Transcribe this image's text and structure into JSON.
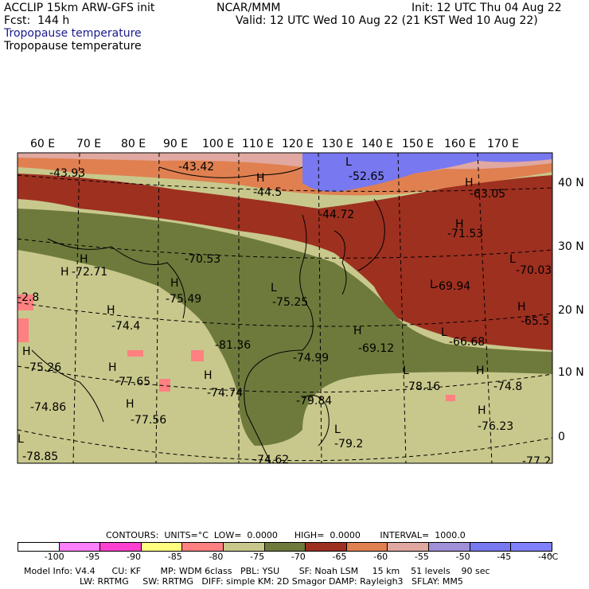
{
  "header": {
    "model": "ACCLIP 15km ARW-GFS init",
    "fcst": "Fcst:  144 h",
    "center": "NCAR/MMM",
    "init": "Init: 12 UTC Thu 04 Aug 22",
    "valid": "Valid: 12 UTC Wed 10 Aug 22 (21 KST Wed 10 Aug 22)",
    "field_title_1": "Tropopause temperature",
    "field_title_2": "Tropopause temperature"
  },
  "map": {
    "lon_labels": [
      "60 E",
      "70 E",
      "80 E",
      "90 E",
      "100 E",
      "110 E",
      "120 E",
      "130 E",
      "140 E",
      "150 E",
      "160 E",
      "170 E"
    ],
    "lat_labels": [
      "40 N",
      "30 N",
      "20 N",
      "10 N",
      "0"
    ],
    "annotations": [
      {
        "t": "-43.93"
      },
      {
        "t": "-43.42"
      },
      {
        "t": "H"
      },
      {
        "t": "-44.5"
      },
      {
        "t": "L"
      },
      {
        "t": "-52.65"
      },
      {
        "t": "-44.72"
      },
      {
        "t": "H"
      },
      {
        "t": "-63.05"
      },
      {
        "t": "H"
      },
      {
        "t": "-71.53"
      },
      {
        "t": "H"
      },
      {
        "t": "-70.53"
      },
      {
        "t": "H"
      },
      {
        "t": "-72.71"
      },
      {
        "t": "L"
      },
      {
        "t": "-70.03"
      },
      {
        "t": "L"
      },
      {
        "t": "-69.94"
      },
      {
        "t": "H"
      },
      {
        "t": "-75.49"
      },
      {
        "t": "L"
      },
      {
        "t": "-75.25"
      },
      {
        "t": "H"
      },
      {
        "t": "-65.5"
      },
      {
        "t": "H"
      },
      {
        "t": "-74.4"
      },
      {
        "t": "-81.36"
      },
      {
        "t": "H"
      },
      {
        "t": "-69.12"
      },
      {
        "t": "L"
      },
      {
        "t": "-66.68"
      },
      {
        "t": "H"
      },
      {
        "t": "-75.26"
      },
      {
        "t": "-74.99"
      },
      {
        "t": "H"
      },
      {
        "t": "-77.65"
      },
      {
        "t": "H"
      },
      {
        "t": "-74.74"
      },
      {
        "t": "L"
      },
      {
        "t": "-78.16"
      },
      {
        "t": "H"
      },
      {
        "t": "-74.8"
      },
      {
        "t": "-74.86"
      },
      {
        "t": "H"
      },
      {
        "t": "-77.56"
      },
      {
        "t": "-79.84"
      },
      {
        "t": "H"
      },
      {
        "t": "-76.23"
      },
      {
        "t": "L"
      },
      {
        "t": "-79.2"
      },
      {
        "t": "L"
      },
      {
        "t": "-78.85"
      },
      {
        "t": "-74.62"
      },
      {
        "t": "-77.2"
      },
      {
        "t": "-2.8"
      }
    ]
  },
  "legend": {
    "contours_line": "CONTOURS:  UNITS=°C  LOW=  0.0000      HIGH=  0.0000       INTERVAL=  1000.0",
    "ticks": [
      "-100",
      "-95",
      "-90",
      "-85",
      "-80",
      "-75",
      "-70",
      "-65",
      "-60",
      "-55",
      "-50",
      "-45",
      "-40"
    ],
    "unit": "°C",
    "colors": [
      "#ffffff",
      "#ff80ff",
      "#ff40d0",
      "#ffff80",
      "#ff8080",
      "#c8c88c",
      "#6e7a3c",
      "#9e3020",
      "#e08050",
      "#e0a8a0",
      "#a090d8",
      "#7878f0",
      "#8080ff"
    ]
  },
  "footer": {
    "line1": "Model Info: V4.4      CU: KF       MP: WDM 6class   PBL: YSU       SF: Noah LSM     15 km    51 levels    90 sec",
    "line2": "LW: RRTMG     SW: RRTMG   DIFF: simple KM: 2D Smagor DAMP: Rayleigh3   SFLAY: MM5"
  }
}
